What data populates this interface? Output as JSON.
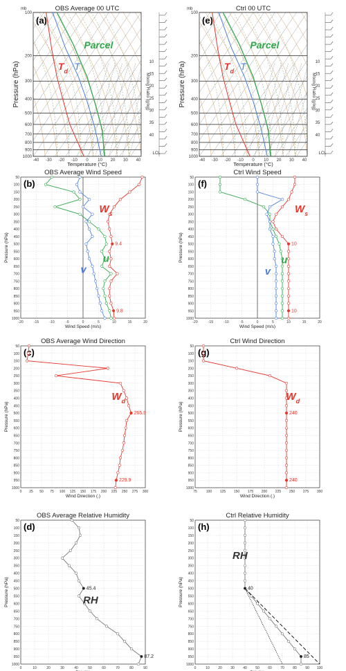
{
  "colors": {
    "red": "#e8352c",
    "green": "#2ea84a",
    "blue": "#4a7fe0",
    "grey": "#777777",
    "obs": "#b24a3c"
  },
  "skewt": {
    "ylabel": "Pressure (hPa)",
    "xlabel": "Temperature (°C)",
    "mr_label": "Mixing Ratio (g/kg)",
    "top_label": "mb",
    "pressures": [
      "100",
      "200",
      "300",
      "400",
      "500",
      "600",
      "700",
      "800",
      "900",
      "1000"
    ],
    "temps": [
      "-40",
      "-30",
      "-20",
      "-10",
      "0",
      "10",
      "20",
      "30",
      "40"
    ],
    "mr_ticks": [
      "10",
      "15",
      "20",
      "25",
      "30",
      "35",
      "40"
    ],
    "lcl": "LCL",
    "left": {
      "label": "(a)",
      "title": "OBS Average 00 UTC",
      "parcel": "Parcel",
      "td": "T",
      "td_sub": "d",
      "t": "T"
    },
    "right": {
      "label": "(e)",
      "title": "Ctrl 00 UTC",
      "parcel": "Parcel",
      "td": "T",
      "td_sub": "d",
      "t": "T"
    }
  },
  "chart_data": [
    {
      "id": "b",
      "type": "line",
      "label": "(b)",
      "title": "OBS Average Wind Speed",
      "xlabel": "Wind Speed (m/s)",
      "ylabel": "Pressure (hPa)",
      "xlim": [
        -20,
        20
      ],
      "ylim": [
        1000,
        50
      ],
      "ticks_x": [
        "-20",
        "-15",
        "-10",
        "-5",
        "0",
        "5",
        "10",
        "15",
        "20"
      ],
      "ticks_y": [
        "50",
        "100",
        "150",
        "200",
        "250",
        "300",
        "350",
        "400",
        "450",
        "500",
        "550",
        "600",
        "650",
        "700",
        "750",
        "800",
        "850",
        "900",
        "950",
        "1000"
      ],
      "series": [
        {
          "name": "W",
          "sub": "s",
          "color": "red",
          "y": [
            50,
            100,
            150,
            200,
            250,
            300,
            350,
            400,
            450,
            500,
            550,
            600,
            650,
            700,
            750,
            800,
            850,
            900,
            950,
            1000
          ],
          "x": [
            19,
            18,
            15,
            12,
            10,
            8.5,
            8,
            8.5,
            9,
            9.4,
            8.5,
            9,
            8.5,
            11,
            9,
            8.5,
            8.5,
            9,
            9.8,
            10
          ]
        },
        {
          "name": "u",
          "color": "green",
          "y": [
            50,
            100,
            150,
            200,
            250,
            300,
            350,
            400,
            450,
            500,
            550,
            600,
            650,
            700,
            750,
            800,
            850,
            900,
            950,
            1000
          ],
          "x": [
            -10,
            -12,
            -3,
            -1,
            -9,
            -1,
            2,
            5,
            7,
            7.5,
            6,
            7,
            6,
            9,
            7,
            6.5,
            7,
            7.5,
            8.5,
            9
          ]
        },
        {
          "name": "v",
          "color": "blue",
          "y": [
            50,
            100,
            150,
            200,
            250,
            300,
            350,
            400,
            450,
            500,
            550,
            600,
            650,
            700,
            750,
            800,
            850,
            900,
            950,
            1000
          ],
          "x": [
            -1,
            -2,
            -1,
            2,
            0,
            3,
            1,
            2,
            3,
            1,
            1.5,
            2,
            3,
            3.5,
            4,
            4.5,
            5,
            5.5,
            6,
            7
          ]
        }
      ],
      "annotations": [
        {
          "text": "9.4",
          "x": 9.4,
          "y": 500
        },
        {
          "text": "9.8",
          "x": 9.8,
          "y": 950
        }
      ]
    },
    {
      "id": "f",
      "type": "line",
      "label": "(f)",
      "title": "Ctrl Wind Speed",
      "xlabel": "Wind Speed (m/s)",
      "ylabel": "Pressure (hPa)",
      "xlim": [
        -20,
        20
      ],
      "ylim": [
        1000,
        50
      ],
      "ticks_x": [
        "-20",
        "-15",
        "-10",
        "-5",
        "0",
        "5",
        "10",
        "15",
        "20"
      ],
      "ticks_y": [
        "50",
        "100",
        "150",
        "200",
        "250",
        "300",
        "350",
        "400",
        "450",
        "500",
        "550",
        "600",
        "650",
        "700",
        "750",
        "800",
        "850",
        "900",
        "950",
        "1000"
      ],
      "series": [
        {
          "name": "W",
          "sub": "s",
          "color": "red",
          "y": [
            50,
            100,
            150,
            200,
            250,
            300,
            350,
            400,
            450,
            500,
            550,
            600,
            650,
            700,
            750,
            800,
            850,
            900,
            950,
            1000
          ],
          "x": [
            12,
            12,
            11,
            10,
            8,
            6,
            5,
            6,
            8,
            10,
            10,
            10,
            10,
            10,
            10,
            10,
            10,
            10,
            10,
            10
          ]
        },
        {
          "name": "u",
          "color": "green",
          "y": [
            50,
            100,
            150,
            200,
            250,
            300,
            350,
            400,
            450,
            500,
            550,
            600,
            650,
            700,
            750,
            800,
            850,
            900,
            950,
            1000
          ],
          "x": [
            -12,
            -12,
            -12,
            -4,
            2,
            4,
            4,
            5,
            6,
            7,
            7.5,
            8,
            8,
            8,
            8,
            8,
            8,
            8,
            8,
            8
          ]
        },
        {
          "name": "v",
          "color": "blue",
          "y": [
            50,
            100,
            150,
            200,
            250,
            300,
            350,
            400,
            450,
            500,
            550,
            600,
            650,
            700,
            750,
            800,
            850,
            900,
            950,
            1000
          ],
          "x": [
            0,
            0,
            0,
            8,
            4,
            3,
            4,
            4,
            5,
            5,
            5.5,
            5.5,
            6,
            6,
            6,
            6,
            6,
            6,
            6,
            6
          ]
        }
      ],
      "annotations": [
        {
          "text": "10",
          "x": 10,
          "y": 500
        },
        {
          "text": "10",
          "x": 10,
          "y": 950
        }
      ]
    },
    {
      "id": "c",
      "type": "line",
      "label": "(c)",
      "title": "OBS Average Wind Direction",
      "xlabel": "Wind Direction (.)",
      "ylabel": "Pressure (hPa)",
      "xlim": [
        0,
        300
      ],
      "ylim": [
        1000,
        50
      ],
      "ticks_x": [
        "0",
        "25",
        "50",
        "75",
        "100",
        "125",
        "150",
        "175",
        "200",
        "225",
        "250",
        "275",
        "300"
      ],
      "ticks_y": [
        "50",
        "100",
        "150",
        "200",
        "250",
        "300",
        "350",
        "400",
        "450",
        "500",
        "550",
        "600",
        "650",
        "700",
        "750",
        "800",
        "850",
        "900",
        "950",
        "1000"
      ],
      "series": [
        {
          "name": "W",
          "sub": "d",
          "color": "red",
          "y": [
            50,
            100,
            150,
            200,
            250,
            300,
            350,
            400,
            450,
            500,
            550,
            600,
            650,
            700,
            750,
            800,
            850,
            900,
            950,
            1000
          ],
          "x": [
            20,
            18,
            15,
            210,
            85,
            240,
            248,
            255,
            260,
            265.9,
            255,
            253,
            250,
            248,
            245,
            240,
            238,
            234,
            229.9,
            228
          ]
        }
      ],
      "annotations": [
        {
          "text": "265.9",
          "x": 265.9,
          "y": 500
        },
        {
          "text": "229.9",
          "x": 229.9,
          "y": 950
        }
      ]
    },
    {
      "id": "g",
      "type": "line",
      "label": "(g)",
      "title": "Ctrl Wind Direction",
      "xlabel": "Wind Direction (.)",
      "ylabel": "Pressure (hPa)",
      "xlim": [
        75,
        300
      ],
      "ylim": [
        1000,
        50
      ],
      "ticks_x": [
        "75",
        "100",
        "125",
        "150",
        "175",
        "200",
        "225",
        "250",
        "275",
        "300"
      ],
      "ticks_y": [
        "50",
        "100",
        "150",
        "200",
        "250",
        "300",
        "350",
        "400",
        "450",
        "500",
        "550",
        "600",
        "650",
        "700",
        "750",
        "800",
        "850",
        "900",
        "950",
        "1000"
      ],
      "series": [
        {
          "name": "W",
          "sub": "d",
          "color": "red",
          "y": [
            50,
            100,
            150,
            200,
            250,
            300,
            350,
            400,
            450,
            500,
            550,
            600,
            650,
            700,
            750,
            800,
            850,
            900,
            950,
            1000
          ],
          "x": [
            90,
            90,
            90,
            150,
            210,
            240,
            240,
            240,
            240,
            240,
            240,
            240,
            240,
            240,
            240,
            240,
            240,
            240,
            240,
            240
          ]
        }
      ],
      "annotations": [
        {
          "text": "240",
          "x": 240,
          "y": 500
        },
        {
          "text": "240",
          "x": 240,
          "y": 950
        }
      ]
    },
    {
      "id": "d",
      "type": "line",
      "label": "(d)",
      "title": "OBS Average Relative Humidity",
      "xlabel": "RH (%)",
      "ylabel": "Pressure (hPa)",
      "xlim": [
        0,
        90
      ],
      "ylim": [
        1000,
        50
      ],
      "ticks_x": [
        "0",
        "10",
        "20",
        "30",
        "40",
        "50",
        "60",
        "70",
        "80",
        "90"
      ],
      "ticks_y": [
        "50",
        "100",
        "150",
        "200",
        "250",
        "300",
        "350",
        "400",
        "450",
        "500",
        "550",
        "600",
        "650",
        "700",
        "750",
        "800",
        "850",
        "900",
        "950",
        "1000"
      ],
      "series": [
        {
          "name": "RH",
          "color": "grey",
          "y": [
            50,
            100,
            150,
            200,
            250,
            300,
            350,
            400,
            450,
            500,
            550,
            600,
            650,
            700,
            750,
            800,
            850,
            900,
            950,
            1000
          ],
          "x": [
            37,
            42,
            43,
            40,
            36,
            30,
            35,
            40,
            42,
            45.4,
            42,
            46,
            50,
            55,
            62,
            70,
            75,
            80,
            87.2,
            85
          ]
        }
      ],
      "annotations": [
        {
          "text": "45.4",
          "x": 45.4,
          "y": 500
        },
        {
          "text": "87.2",
          "x": 87.2,
          "y": 950
        }
      ]
    },
    {
      "id": "h",
      "type": "line",
      "label": "(h)",
      "title": "Ctrl Relative Humidity",
      "xlabel": "RH (%)",
      "ylabel": "Pressure (hPa)",
      "xlim": [
        0,
        100
      ],
      "ylim": [
        1000,
        50
      ],
      "ticks_x": [
        "0",
        "10",
        "20",
        "30",
        "40",
        "50",
        "60",
        "70",
        "80",
        "90",
        "100"
      ],
      "ticks_y": [
        "50",
        "100",
        "150",
        "200",
        "250",
        "300",
        "350",
        "400",
        "450",
        "500",
        "550",
        "600",
        "650",
        "700",
        "750",
        "800",
        "850",
        "900",
        "950",
        "1000"
      ],
      "series": [
        {
          "name": "RH",
          "color": "grey",
          "y": [
            50,
            100,
            150,
            200,
            250,
            300,
            350,
            400,
            450,
            500,
            550,
            600,
            650,
            700,
            750,
            800,
            850,
            900,
            950,
            1000
          ],
          "x": [
            40,
            40,
            40,
            40,
            40,
            40,
            40,
            40,
            40,
            40,
            45,
            50,
            55,
            60,
            65,
            70,
            75,
            80,
            85,
            85
          ]
        },
        {
          "name": "",
          "color": "black",
          "style": "dash",
          "y": [
            500,
            1000
          ],
          "x": [
            40,
            100
          ]
        },
        {
          "name": "",
          "color": "black",
          "style": "dot",
          "y": [
            500,
            1000
          ],
          "x": [
            40,
            70
          ]
        }
      ],
      "annotations": [
        {
          "text": "40",
          "x": 40,
          "y": 500
        },
        {
          "text": "85",
          "x": 85,
          "y": 950
        }
      ]
    }
  ]
}
